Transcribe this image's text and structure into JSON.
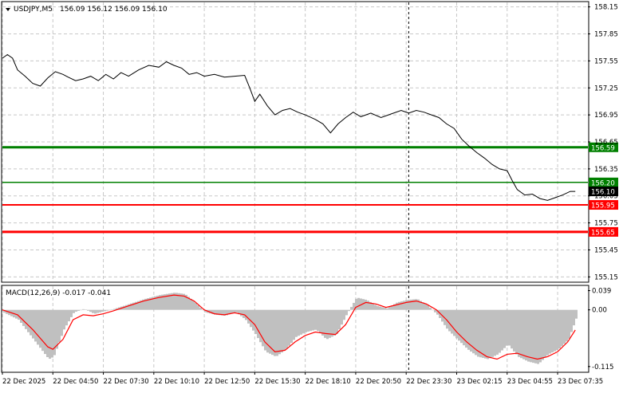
{
  "header": {
    "symbol": "USDJPY,M5",
    "ohlc": "156.09 156.12 156.09 156.10",
    "macd_title": "MACD(12,26,9) -0.017 -0.041"
  },
  "colors": {
    "price_line": "#000000",
    "support_resistance_green": "#008000",
    "support_resistance_red": "#ff0000",
    "macd_histogram": "#c0c0c0",
    "macd_signal": "#ff0000",
    "current_price_box": "#000000",
    "grid": "#c8c8c8"
  },
  "chart_data": [
    {
      "type": "line",
      "name": "USDJPY M5 price",
      "ylim": [
        155.1,
        158.2
      ],
      "y_ticks": [
        "158.15",
        "157.85",
        "157.55",
        "157.25",
        "156.95",
        "156.65",
        "156.35",
        "156.05",
        "155.75",
        "155.45",
        "155.15"
      ],
      "x_tick_labels": [
        "22 Dec 2025",
        "22 Dec 04:50",
        "22 Dec 07:30",
        "22 Dec 10:10",
        "22 Dec 12:50",
        "22 Dec 15:30",
        "22 Dec 18:10",
        "22 Dec 20:50",
        "22 Dec 23:30",
        "23 Dec 02:15",
        "23 Dec 04:55",
        "23 Dec 07:35"
      ],
      "x_range": [
        0,
        11.6
      ],
      "grid": true,
      "price_series": [
        [
          0.0,
          157.58
        ],
        [
          0.1,
          157.62
        ],
        [
          0.2,
          157.58
        ],
        [
          0.3,
          157.45
        ],
        [
          0.45,
          157.38
        ],
        [
          0.6,
          157.3
        ],
        [
          0.75,
          157.27
        ],
        [
          0.9,
          157.36
        ],
        [
          1.05,
          157.43
        ],
        [
          1.2,
          157.4
        ],
        [
          1.3,
          157.37
        ],
        [
          1.45,
          157.33
        ],
        [
          1.6,
          157.35
        ],
        [
          1.75,
          157.38
        ],
        [
          1.9,
          157.33
        ],
        [
          2.05,
          157.4
        ],
        [
          2.2,
          157.35
        ],
        [
          2.35,
          157.42
        ],
        [
          2.5,
          157.38
        ],
        [
          2.7,
          157.45
        ],
        [
          2.9,
          157.5
        ],
        [
          3.1,
          157.48
        ],
        [
          3.25,
          157.54
        ],
        [
          3.4,
          157.5
        ],
        [
          3.55,
          157.47
        ],
        [
          3.7,
          157.4
        ],
        [
          3.85,
          157.42
        ],
        [
          4.0,
          157.38
        ],
        [
          4.2,
          157.4
        ],
        [
          4.4,
          157.37
        ],
        [
          4.6,
          157.38
        ],
        [
          4.8,
          157.39
        ],
        [
          4.9,
          157.25
        ],
        [
          5.0,
          157.1
        ],
        [
          5.1,
          157.18
        ],
        [
          5.25,
          157.05
        ],
        [
          5.4,
          156.95
        ],
        [
          5.55,
          157.0
        ],
        [
          5.7,
          157.02
        ],
        [
          5.85,
          156.98
        ],
        [
          6.0,
          156.95
        ],
        [
          6.2,
          156.9
        ],
        [
          6.35,
          156.85
        ],
        [
          6.5,
          156.75
        ],
        [
          6.65,
          156.85
        ],
        [
          6.8,
          156.92
        ],
        [
          6.95,
          156.98
        ],
        [
          7.1,
          156.93
        ],
        [
          7.3,
          156.97
        ],
        [
          7.5,
          156.92
        ],
        [
          7.7,
          156.96
        ],
        [
          7.9,
          157.0
        ],
        [
          8.05,
          156.97
        ],
        [
          8.2,
          157.0
        ],
        [
          8.35,
          156.98
        ],
        [
          8.5,
          156.95
        ],
        [
          8.65,
          156.92
        ],
        [
          8.8,
          156.85
        ],
        [
          8.95,
          156.8
        ],
        [
          9.1,
          156.68
        ],
        [
          9.25,
          156.6
        ],
        [
          9.4,
          156.53
        ],
        [
          9.55,
          156.47
        ],
        [
          9.7,
          156.4
        ],
        [
          9.85,
          156.35
        ],
        [
          10.0,
          156.33
        ],
        [
          10.1,
          156.22
        ],
        [
          10.2,
          156.12
        ],
        [
          10.35,
          156.06
        ],
        [
          10.5,
          156.07
        ],
        [
          10.65,
          156.02
        ],
        [
          10.8,
          156.0
        ],
        [
          10.95,
          156.03
        ],
        [
          11.1,
          156.06
        ],
        [
          11.25,
          156.1
        ],
        [
          11.35,
          156.1
        ]
      ],
      "levels": [
        {
          "value": 156.59,
          "label": "156.59",
          "color": "#008000",
          "width": 3
        },
        {
          "value": 156.2,
          "label": "156.20",
          "color": "#008000",
          "width": 1.5
        },
        {
          "value": 155.95,
          "label": "155.95",
          "color": "#ff0000",
          "width": 2
        },
        {
          "value": 155.65,
          "label": "155.65",
          "color": "#ff0000",
          "width": 3
        }
      ],
      "current_price": {
        "value": 156.1,
        "label": "156.10"
      },
      "vertical_marker_x": 8.05
    },
    {
      "type": "bar",
      "name": "MACD(12,26,9)",
      "ylim": [
        -0.125,
        0.048
      ],
      "y_ticks": [
        "0.039",
        "0.00",
        "-0.115"
      ],
      "histogram_series": [
        [
          0.0,
          -0.005
        ],
        [
          0.3,
          -0.02
        ],
        [
          0.6,
          -0.06
        ],
        [
          0.9,
          -0.1
        ],
        [
          1.0,
          -0.095
        ],
        [
          1.2,
          -0.04
        ],
        [
          1.4,
          -0.005
        ],
        [
          1.6,
          0.002
        ],
        [
          1.8,
          -0.008
        ],
        [
          2.0,
          -0.003
        ],
        [
          2.2,
          0.002
        ],
        [
          2.5,
          0.012
        ],
        [
          2.8,
          0.022
        ],
        [
          3.1,
          0.03
        ],
        [
          3.4,
          0.035
        ],
        [
          3.6,
          0.032
        ],
        [
          3.8,
          0.015
        ],
        [
          4.0,
          -0.005
        ],
        [
          4.2,
          -0.01
        ],
        [
          4.4,
          -0.012
        ],
        [
          4.6,
          -0.004
        ],
        [
          4.8,
          -0.02
        ],
        [
          5.0,
          -0.05
        ],
        [
          5.2,
          -0.085
        ],
        [
          5.4,
          -0.095
        ],
        [
          5.6,
          -0.08
        ],
        [
          5.8,
          -0.055
        ],
        [
          6.0,
          -0.045
        ],
        [
          6.2,
          -0.04
        ],
        [
          6.4,
          -0.06
        ],
        [
          6.6,
          -0.05
        ],
        [
          6.8,
          -0.01
        ],
        [
          7.0,
          0.025
        ],
        [
          7.2,
          0.02
        ],
        [
          7.4,
          0.008
        ],
        [
          7.6,
          0.003
        ],
        [
          7.8,
          0.015
        ],
        [
          8.0,
          0.02
        ],
        [
          8.2,
          0.022
        ],
        [
          8.4,
          0.01
        ],
        [
          8.6,
          -0.01
        ],
        [
          8.8,
          -0.04
        ],
        [
          9.0,
          -0.06
        ],
        [
          9.2,
          -0.08
        ],
        [
          9.4,
          -0.095
        ],
        [
          9.6,
          -0.1
        ],
        [
          9.8,
          -0.09
        ],
        [
          10.0,
          -0.07
        ],
        [
          10.2,
          -0.095
        ],
        [
          10.4,
          -0.105
        ],
        [
          10.6,
          -0.11
        ],
        [
          10.8,
          -0.09
        ],
        [
          11.0,
          -0.08
        ],
        [
          11.2,
          -0.06
        ],
        [
          11.35,
          -0.017
        ]
      ],
      "signal_series": [
        [
          0.0,
          0.0
        ],
        [
          0.3,
          -0.01
        ],
        [
          0.6,
          -0.04
        ],
        [
          0.9,
          -0.075
        ],
        [
          1.0,
          -0.08
        ],
        [
          1.2,
          -0.06
        ],
        [
          1.4,
          -0.02
        ],
        [
          1.6,
          -0.01
        ],
        [
          1.8,
          -0.012
        ],
        [
          2.0,
          -0.008
        ],
        [
          2.2,
          -0.002
        ],
        [
          2.5,
          0.008
        ],
        [
          2.8,
          0.018
        ],
        [
          3.1,
          0.025
        ],
        [
          3.4,
          0.03
        ],
        [
          3.6,
          0.028
        ],
        [
          3.8,
          0.018
        ],
        [
          4.0,
          0.0
        ],
        [
          4.2,
          -0.008
        ],
        [
          4.4,
          -0.01
        ],
        [
          4.6,
          -0.006
        ],
        [
          4.8,
          -0.01
        ],
        [
          5.0,
          -0.03
        ],
        [
          5.2,
          -0.065
        ],
        [
          5.4,
          -0.085
        ],
        [
          5.6,
          -0.082
        ],
        [
          5.8,
          -0.065
        ],
        [
          6.0,
          -0.052
        ],
        [
          6.2,
          -0.045
        ],
        [
          6.4,
          -0.048
        ],
        [
          6.6,
          -0.05
        ],
        [
          6.8,
          -0.03
        ],
        [
          7.0,
          0.005
        ],
        [
          7.2,
          0.015
        ],
        [
          7.4,
          0.012
        ],
        [
          7.6,
          0.005
        ],
        [
          7.8,
          0.01
        ],
        [
          8.0,
          0.015
        ],
        [
          8.2,
          0.018
        ],
        [
          8.4,
          0.012
        ],
        [
          8.6,
          0.0
        ],
        [
          8.8,
          -0.02
        ],
        [
          9.0,
          -0.045
        ],
        [
          9.2,
          -0.065
        ],
        [
          9.4,
          -0.082
        ],
        [
          9.6,
          -0.095
        ],
        [
          9.8,
          -0.1
        ],
        [
          10.0,
          -0.09
        ],
        [
          10.2,
          -0.088
        ],
        [
          10.4,
          -0.095
        ],
        [
          10.6,
          -0.1
        ],
        [
          10.8,
          -0.095
        ],
        [
          11.0,
          -0.085
        ],
        [
          11.2,
          -0.065
        ],
        [
          11.35,
          -0.041
        ]
      ]
    }
  ]
}
